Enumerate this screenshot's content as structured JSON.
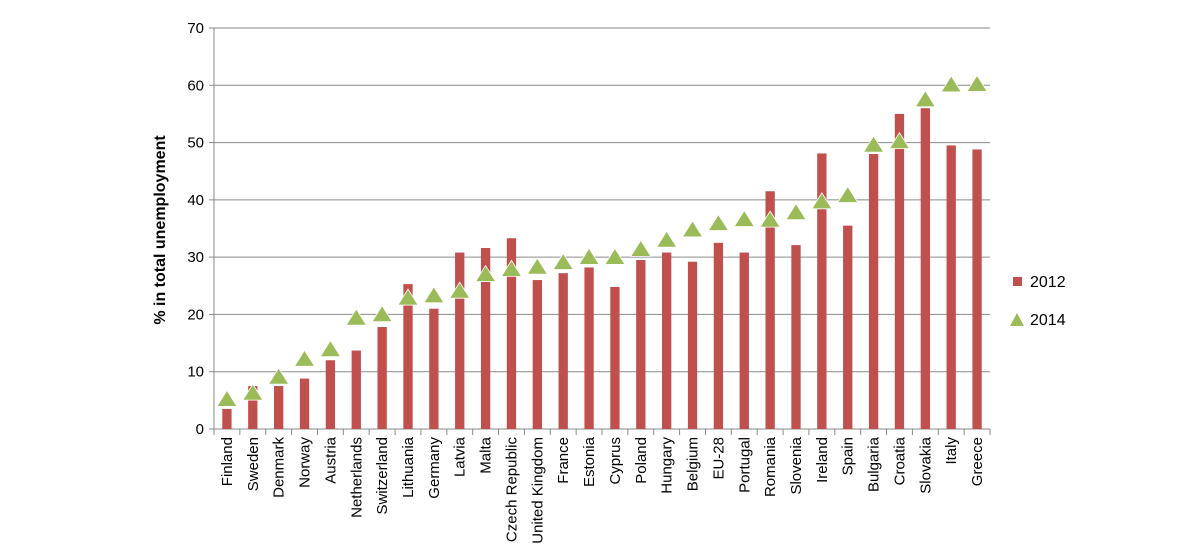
{
  "chart_data": {
    "type": "bar",
    "title": "",
    "xlabel": "",
    "ylabel": "% in total unemployment",
    "ylim": [
      0,
      70
    ],
    "yticks": [
      0,
      10,
      20,
      30,
      40,
      50,
      60,
      70
    ],
    "grid": true,
    "legend_position": "right",
    "categories": [
      "Finland",
      "Sweden",
      "Denmark",
      "Norway",
      "Austria",
      "Netherlands",
      "Switzerland",
      "Lithuania",
      "Germany",
      "Latvia",
      "Malta",
      "Czech Republic",
      "United Kingdom",
      "France",
      "Estonia",
      "Cyprus",
      "Poland",
      "Hungary",
      "Belgium",
      "EU-28",
      "Portugal",
      "Romania",
      "Slovenia",
      "Ireland",
      "Spain",
      "Bulgaria",
      "Croatia",
      "Slovakia",
      "Italy",
      "Greece"
    ],
    "series": [
      {
        "name": "2012",
        "kind": "bar",
        "color": "#c0504d",
        "values": [
          3.5,
          7.5,
          7.5,
          8.8,
          12,
          13.7,
          17.8,
          25.3,
          21,
          30.8,
          31.6,
          33.3,
          26,
          27.2,
          28.2,
          24.8,
          29.5,
          30.8,
          29.2,
          32.5,
          30.8,
          41.5,
          32.1,
          48.1,
          35.5,
          48,
          55,
          56,
          49.5,
          48.8
        ]
      },
      {
        "name": "2014",
        "kind": "marker",
        "color": "#9bbb59",
        "values": [
          5,
          6.1,
          8.9,
          12,
          13.7,
          19.2,
          19.8,
          22.7,
          23.1,
          23.9,
          26.8,
          27.7,
          28.1,
          28.9,
          29.8,
          29.8,
          31.2,
          32.8,
          34.6,
          35.7,
          36.4,
          36.3,
          37.6,
          39.5,
          40.6,
          49.4,
          50,
          57.3,
          59.9,
          60
        ]
      }
    ]
  }
}
